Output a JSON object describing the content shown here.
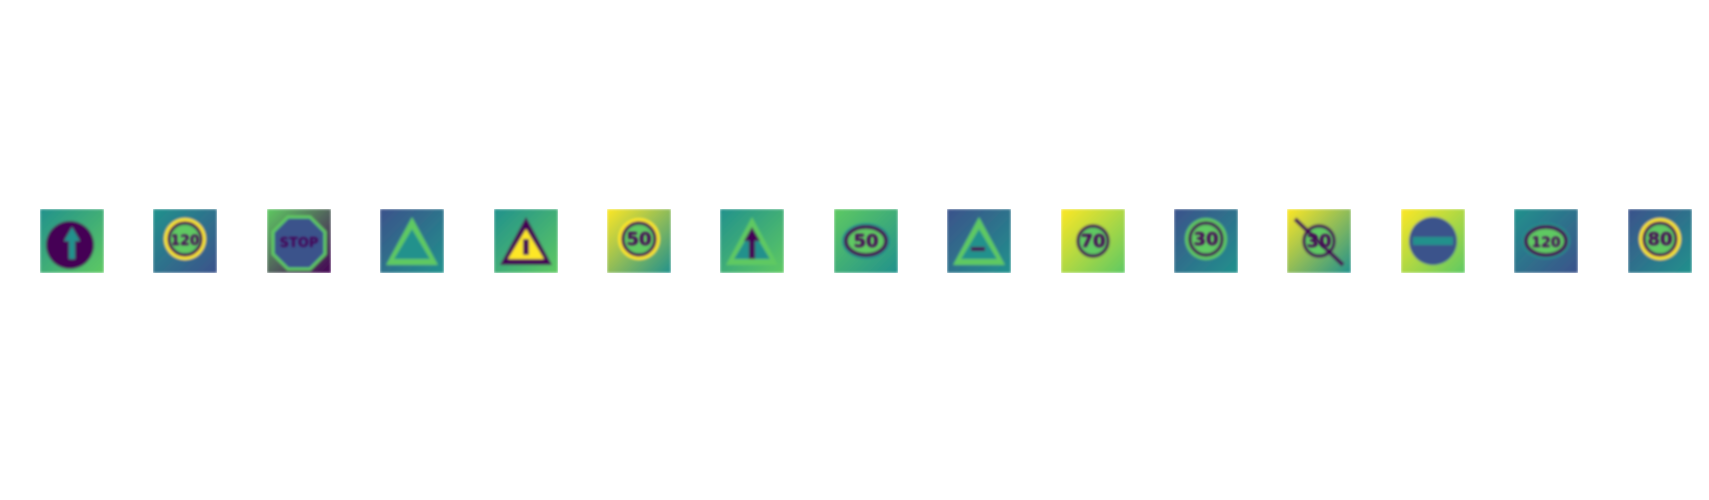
{
  "figure": {
    "panels": [
      {
        "name": "ahead-only-sign",
        "shape": "circle",
        "glyph": "arrow-up",
        "text": ""
      },
      {
        "name": "speed-limit-120-sign",
        "shape": "circle-ring",
        "glyph": "",
        "text": "120"
      },
      {
        "name": "stop-sign",
        "shape": "octagon",
        "glyph": "",
        "text": "STOP"
      },
      {
        "name": "warning-triangle-sign",
        "shape": "triangle",
        "glyph": "",
        "text": ""
      },
      {
        "name": "warning-triangle-dark-sign",
        "shape": "triangle-dark",
        "glyph": "figure",
        "text": ""
      },
      {
        "name": "speed-limit-50-sign",
        "shape": "circle-ring",
        "glyph": "",
        "text": "50"
      },
      {
        "name": "warning-triangle-arrow-sign",
        "shape": "triangle",
        "glyph": "arrow-up",
        "text": ""
      },
      {
        "name": "speed-limit-50-ellipse-sign",
        "shape": "ellipse-ring",
        "glyph": "",
        "text": "50"
      },
      {
        "name": "warning-triangle-slope-sign",
        "shape": "triangle",
        "glyph": "dash",
        "text": ""
      },
      {
        "name": "speed-limit-70-sign",
        "shape": "circle-ring-small",
        "glyph": "",
        "text": "70"
      },
      {
        "name": "speed-limit-30-sign",
        "shape": "circle-soft",
        "glyph": "",
        "text": "30"
      },
      {
        "name": "speed-limit-30-diag-sign",
        "shape": "circle-ring-small",
        "glyph": "slash",
        "text": "30"
      },
      {
        "name": "no-entry-sign",
        "shape": "circle-bar",
        "glyph": "",
        "text": ""
      },
      {
        "name": "speed-limit-120-ellipse-sign",
        "shape": "ellipse-ring",
        "glyph": "",
        "text": "120"
      },
      {
        "name": "speed-limit-80-sign",
        "shape": "circle-ring",
        "glyph": "",
        "text": "80"
      }
    ]
  },
  "colors": {
    "dark": "#440154",
    "blue": "#3b528b",
    "teal": "#21918c",
    "green": "#5ec962",
    "yellow": "#fde725"
  }
}
